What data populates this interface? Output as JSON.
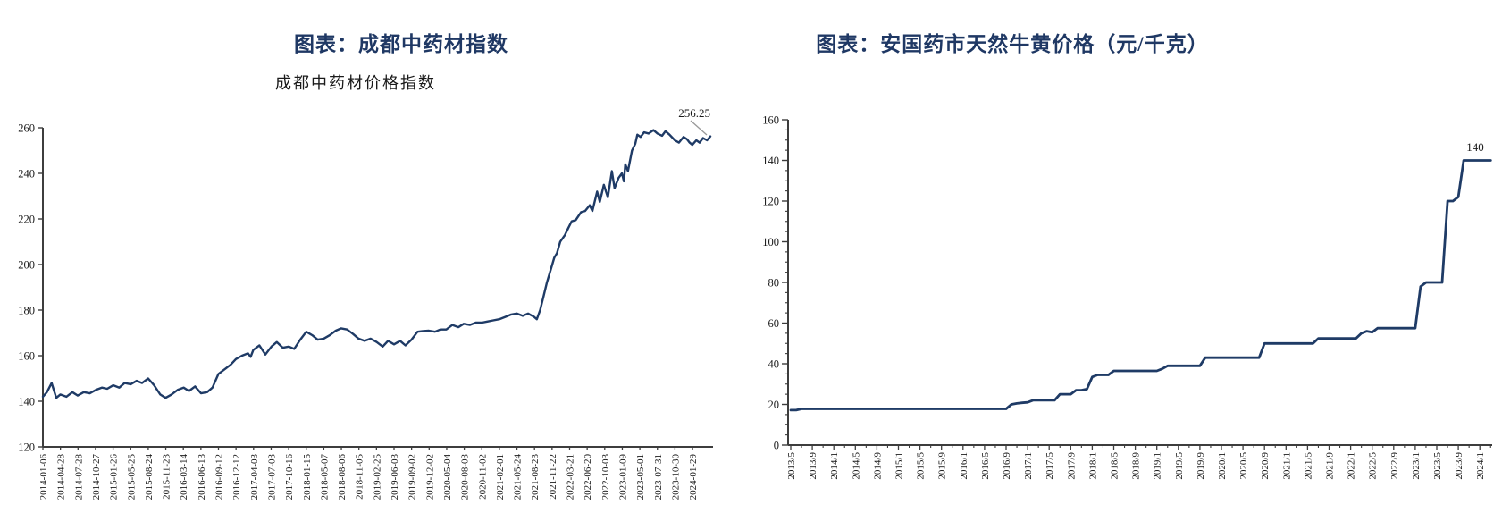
{
  "page": {
    "background": "#ffffff"
  },
  "colors": {
    "title_navy": "#1f3864",
    "line_navy": "#1f3b66",
    "axis_gray": "#3d3d3d",
    "label_black": "#1a1a1a",
    "leader_gray": "#999999"
  },
  "chart_data": [
    {
      "type": "line",
      "title": "图表：成都中药材指数",
      "subtitle": "成都中药材价格指数",
      "series_name": "成都中药材价格指数",
      "end_label": "256.25",
      "end_value": 256.25,
      "ylim": [
        120,
        260
      ],
      "ytick_step": 20,
      "y_tick_labels": [
        "120",
        "140",
        "160",
        "180",
        "200",
        "220",
        "240",
        "260"
      ],
      "grid": false,
      "legend": "none",
      "x_tick_labels": [
        "2014-01-06",
        "2014-04-28",
        "2014-07-28",
        "2014-10-27",
        "2015-01-26",
        "2015-05-25",
        "2015-08-24",
        "2015-11-23",
        "2016-03-14",
        "2016-06-13",
        "2016-09-12",
        "2016-12-12",
        "2017-04-03",
        "2017-07-03",
        "2017-10-16",
        "2018-01-15",
        "2018-05-07",
        "2018-08-06",
        "2018-11-05",
        "2019-02-25",
        "2019-06-03",
        "2019-09-02",
        "2019-12-02",
        "2020-05-04",
        "2020-08-03",
        "2020-11-02",
        "2021-02-01",
        "2021-05-24",
        "2021-08-23",
        "2021-11-22",
        "2022-03-21",
        "2022-06-20",
        "2022-10-03",
        "2023-01-09",
        "2023-05-01",
        "2023-07-31",
        "2023-10-30",
        "2024-01-29"
      ],
      "points_note": "pairs of [fraction-of-x-axis, index value]",
      "points": [
        [
          0,
          142
        ],
        [
          0.006,
          144
        ],
        [
          0.013,
          148
        ],
        [
          0.02,
          141.5
        ],
        [
          0.026,
          143
        ],
        [
          0.035,
          142
        ],
        [
          0.044,
          144
        ],
        [
          0.052,
          142.5
        ],
        [
          0.061,
          144
        ],
        [
          0.07,
          143.5
        ],
        [
          0.079,
          145
        ],
        [
          0.088,
          146
        ],
        [
          0.096,
          145.5
        ],
        [
          0.105,
          147
        ],
        [
          0.114,
          146
        ],
        [
          0.122,
          148
        ],
        [
          0.131,
          147.5
        ],
        [
          0.14,
          149
        ],
        [
          0.148,
          148
        ],
        [
          0.157,
          150
        ],
        [
          0.166,
          147
        ],
        [
          0.175,
          143
        ],
        [
          0.183,
          141.5
        ],
        [
          0.192,
          143
        ],
        [
          0.201,
          145
        ],
        [
          0.21,
          146
        ],
        [
          0.218,
          144.5
        ],
        [
          0.227,
          146.5
        ],
        [
          0.236,
          143.5
        ],
        [
          0.245,
          144
        ],
        [
          0.253,
          146
        ],
        [
          0.262,
          152
        ],
        [
          0.271,
          154
        ],
        [
          0.28,
          156
        ],
        [
          0.288,
          158.5
        ],
        [
          0.297,
          160
        ],
        [
          0.306,
          161
        ],
        [
          0.31,
          159.5
        ],
        [
          0.314,
          162.5
        ],
        [
          0.323,
          164.5
        ],
        [
          0.332,
          160.5
        ],
        [
          0.341,
          164
        ],
        [
          0.349,
          166
        ],
        [
          0.358,
          163.5
        ],
        [
          0.367,
          164
        ],
        [
          0.375,
          163
        ],
        [
          0.384,
          167
        ],
        [
          0.393,
          170.5
        ],
        [
          0.402,
          169
        ],
        [
          0.41,
          167
        ],
        [
          0.419,
          167.5
        ],
        [
          0.428,
          169
        ],
        [
          0.437,
          171
        ],
        [
          0.445,
          172
        ],
        [
          0.454,
          171.5
        ],
        [
          0.463,
          169.5
        ],
        [
          0.471,
          167.5
        ],
        [
          0.48,
          166.5
        ],
        [
          0.489,
          167.5
        ],
        [
          0.498,
          166
        ],
        [
          0.507,
          164
        ],
        [
          0.515,
          166.5
        ],
        [
          0.524,
          165
        ],
        [
          0.533,
          166.5
        ],
        [
          0.541,
          164.5
        ],
        [
          0.55,
          167
        ],
        [
          0.559,
          170.5
        ],
        [
          0.567,
          170.8
        ],
        [
          0.576,
          171
        ],
        [
          0.585,
          170.5
        ],
        [
          0.593,
          171.5
        ],
        [
          0.602,
          171.5
        ],
        [
          0.611,
          173.5
        ],
        [
          0.62,
          172.5
        ],
        [
          0.628,
          174
        ],
        [
          0.637,
          173.5
        ],
        [
          0.646,
          174.5
        ],
        [
          0.655,
          174.5
        ],
        [
          0.663,
          175
        ],
        [
          0.672,
          175.5
        ],
        [
          0.681,
          176
        ],
        [
          0.69,
          177
        ],
        [
          0.698,
          178
        ],
        [
          0.707,
          178.5
        ],
        [
          0.716,
          177.5
        ],
        [
          0.724,
          178.5
        ],
        [
          0.733,
          177
        ],
        [
          0.737,
          176
        ],
        [
          0.742,
          180
        ],
        [
          0.747,
          186
        ],
        [
          0.752,
          192
        ],
        [
          0.759,
          199
        ],
        [
          0.763,
          203
        ],
        [
          0.767,
          205
        ],
        [
          0.772,
          210
        ],
        [
          0.779,
          213
        ],
        [
          0.784,
          216
        ],
        [
          0.789,
          219
        ],
        [
          0.795,
          219.5
        ],
        [
          0.803,
          223
        ],
        [
          0.809,
          223.5
        ],
        [
          0.816,
          226
        ],
        [
          0.82,
          223.5
        ],
        [
          0.827,
          232
        ],
        [
          0.831,
          227.5
        ],
        [
          0.837,
          235
        ],
        [
          0.843,
          229.5
        ],
        [
          0.849,
          241
        ],
        [
          0.853,
          233.5
        ],
        [
          0.859,
          238
        ],
        [
          0.864,
          240
        ],
        [
          0.867,
          236.5
        ],
        [
          0.869,
          244
        ],
        [
          0.873,
          241
        ],
        [
          0.879,
          250
        ],
        [
          0.884,
          253
        ],
        [
          0.887,
          257
        ],
        [
          0.892,
          256
        ],
        [
          0.897,
          258
        ],
        [
          0.904,
          257.5
        ],
        [
          0.911,
          259
        ],
        [
          0.917,
          257.5
        ],
        [
          0.924,
          256.5
        ],
        [
          0.929,
          258.5
        ],
        [
          0.935,
          257
        ],
        [
          0.943,
          254.5
        ],
        [
          0.949,
          253.5
        ],
        [
          0.956,
          256
        ],
        [
          0.961,
          255
        ],
        [
          0.965,
          253.5
        ],
        [
          0.969,
          252.5
        ],
        [
          0.975,
          254.5
        ],
        [
          0.98,
          253.5
        ],
        [
          0.985,
          255.5
        ],
        [
          0.991,
          254.5
        ],
        [
          0.996,
          256.25
        ]
      ]
    },
    {
      "type": "line",
      "title": "图表：安国药市天然牛黄价格（元/千克）",
      "series_name": "安国药市天然牛黄价格",
      "end_label": "140",
      "end_value": 140,
      "ylim": [
        0,
        160
      ],
      "ytick_step": 20,
      "y_tick_labels": [
        "0",
        "20",
        "40",
        "60",
        "80",
        "100",
        "120",
        "140",
        "160"
      ],
      "grid": false,
      "legend": "none",
      "x_tick_labels": [
        "2013/5",
        "2013/9",
        "2014/1",
        "2014/5",
        "2014/9",
        "2015/1",
        "2015/5",
        "2015/9",
        "2016/1",
        "2016/5",
        "2016/9",
        "2017/1",
        "2017/5",
        "2017/9",
        "2018/1",
        "2018/5",
        "2018/9",
        "2019/1",
        "2019/5",
        "2019/9",
        "2020/1",
        "2020/5",
        "2020/9",
        "2021/1",
        "2021/5",
        "2021/9",
        "2022/1",
        "2022/5",
        "2022/9",
        "2023/1",
        "2023/5",
        "2023/9",
        "2024/1"
      ],
      "x_start": "2013/5",
      "x_frequency": "monthly",
      "monthly_values": [
        17.2,
        17.2,
        17.8,
        17.8,
        17.8,
        17.8,
        17.8,
        17.8,
        17.8,
        17.8,
        17.8,
        17.8,
        17.8,
        17.8,
        17.8,
        17.8,
        17.8,
        17.8,
        17.8,
        17.8,
        17.8,
        17.8,
        17.8,
        17.8,
        17.8,
        17.8,
        17.8,
        17.8,
        17.8,
        17.8,
        17.8,
        17.8,
        17.8,
        17.8,
        17.8,
        17.8,
        17.8,
        17.8,
        17.8,
        17.8,
        17.8,
        20,
        20.5,
        20.8,
        21,
        22,
        22,
        22,
        22,
        22,
        25,
        25,
        25,
        27,
        27,
        27.5,
        33.5,
        34.5,
        34.5,
        34.5,
        36.5,
        36.5,
        36.5,
        36.5,
        36.5,
        36.5,
        36.5,
        36.5,
        36.5,
        37.5,
        39,
        39,
        39,
        39,
        39,
        39,
        39,
        43,
        43,
        43,
        43,
        43,
        43,
        43,
        43,
        43,
        43,
        43,
        50,
        50,
        50,
        50,
        50,
        50,
        50,
        50,
        50,
        50,
        52.5,
        52.5,
        52.5,
        52.5,
        52.5,
        52.5,
        52.5,
        52.5,
        55,
        56,
        55.5,
        57.5,
        57.5,
        57.5,
        57.5,
        57.5,
        57.5,
        57.5,
        57.5,
        78,
        80,
        80,
        80,
        80,
        120,
        120,
        122,
        140,
        140,
        140,
        140,
        140,
        140
      ]
    }
  ]
}
